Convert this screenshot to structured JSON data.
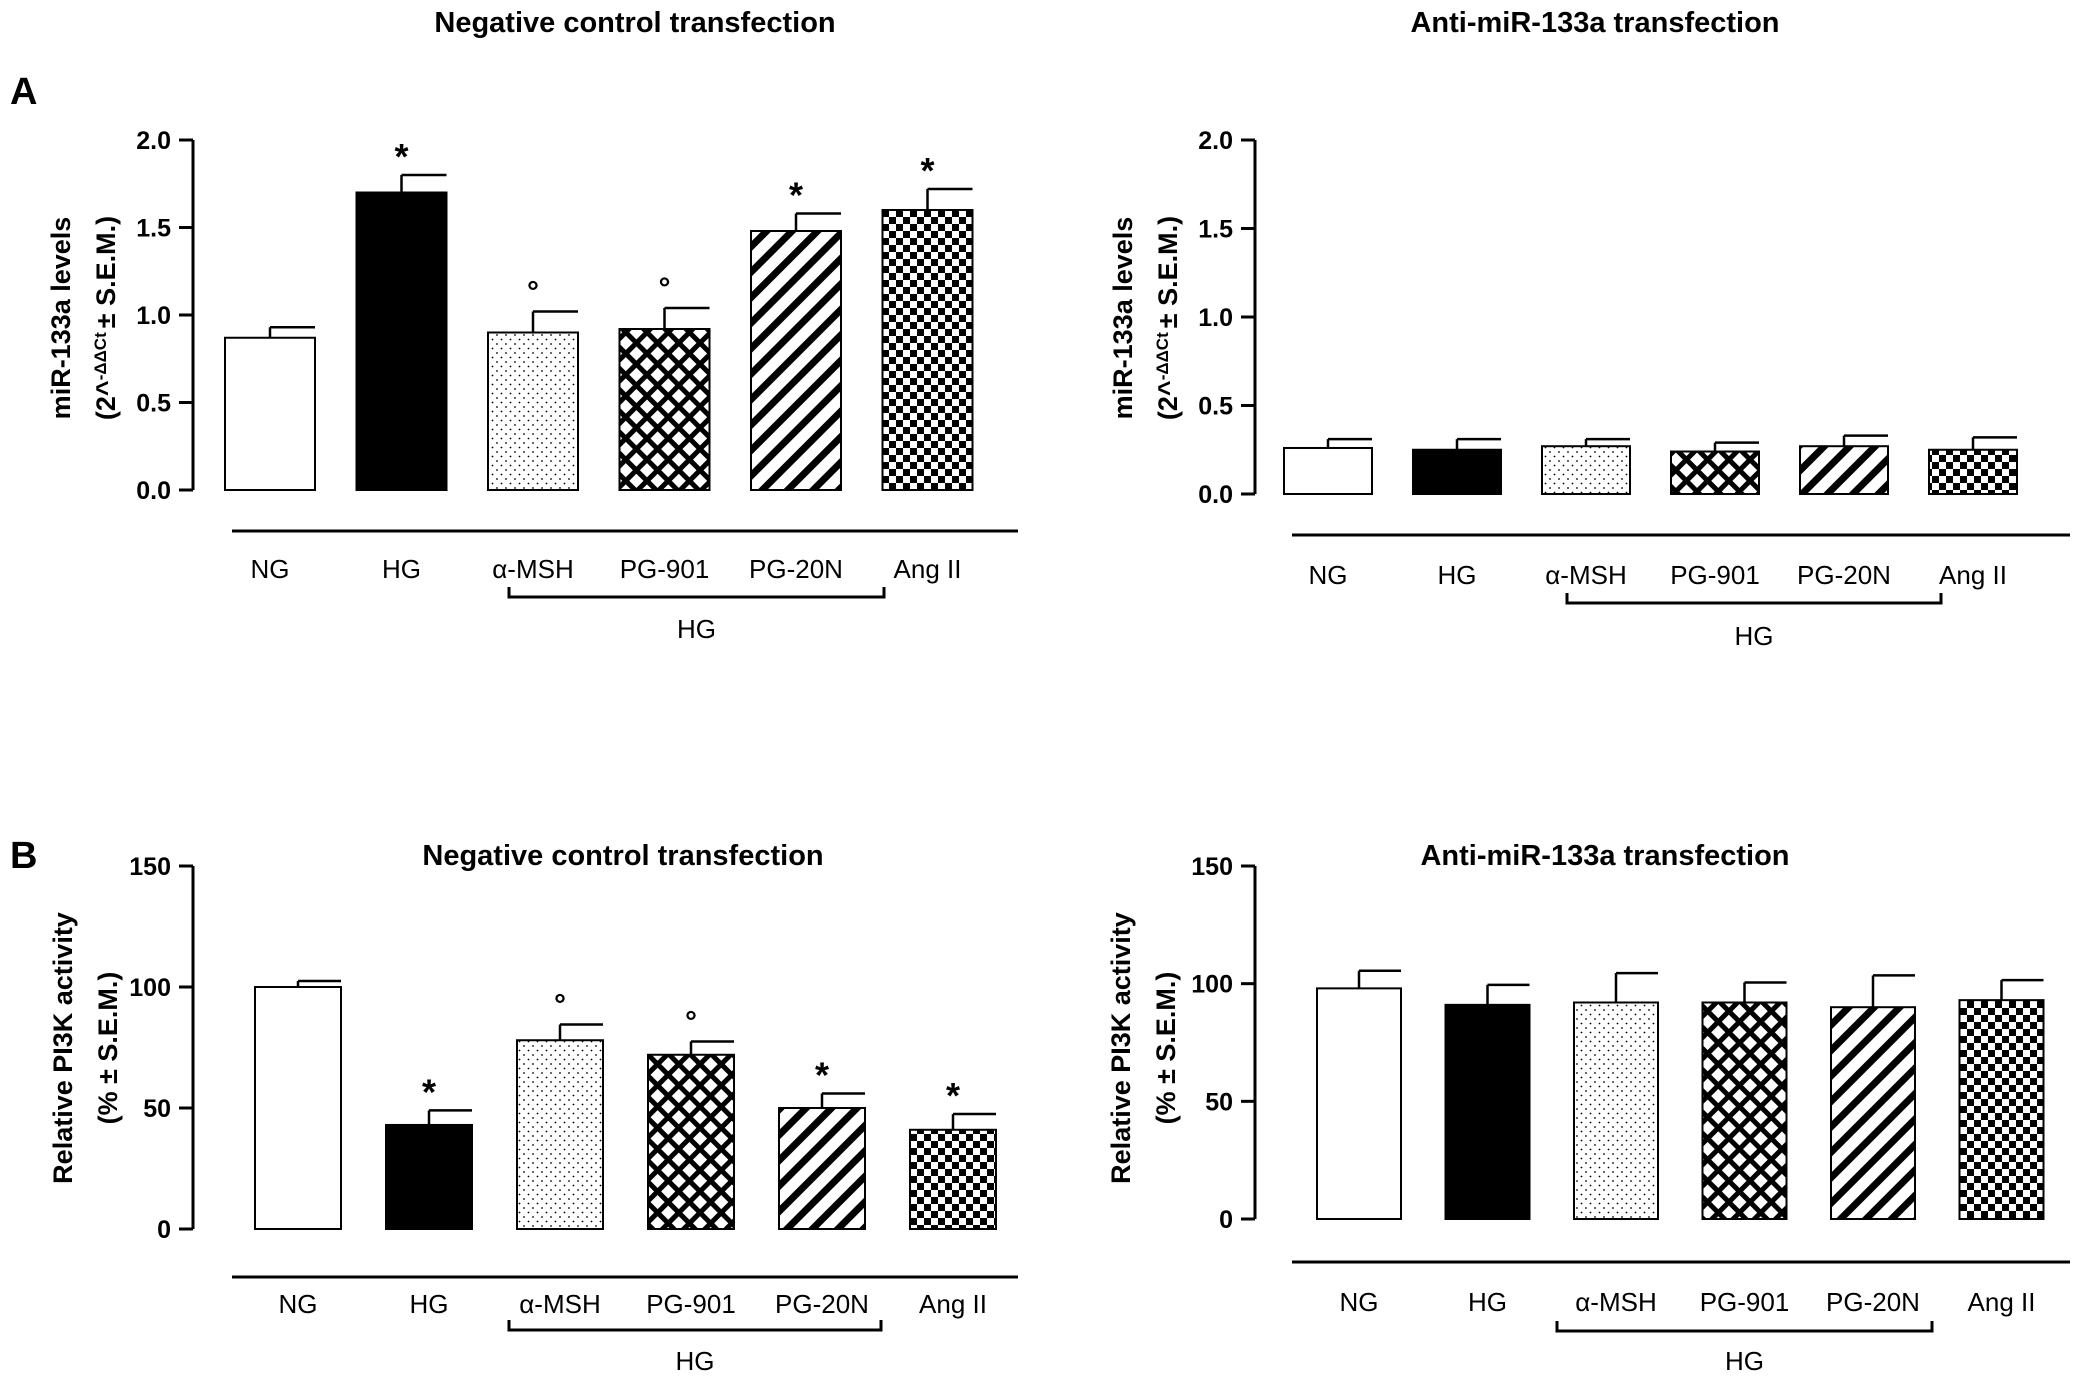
{
  "figure": {
    "top_titles": [
      "Negative control transfection",
      "Anti-miR-133a transfection"
    ],
    "panel_labels": [
      "A",
      "B"
    ]
  },
  "chart_data": [
    {
      "type": "bar",
      "panel": "A",
      "title": "",
      "ylabel_line1": "miR-133a levels",
      "ylabel_line2_prefix": "(2^",
      "ylabel_superscript": "-ΔΔCt",
      "ylabel_line2_suffix": "± S.E.M.)",
      "ylim": [
        0,
        2.0
      ],
      "yticks": [
        0.0,
        0.5,
        1.0,
        1.5,
        2.0
      ],
      "ytick_labels": [
        "0.0",
        "0.5",
        "1.0",
        "1.5",
        "2.0"
      ],
      "categories": [
        "NG",
        "HG",
        "α-MSH",
        "PG-901",
        "PG-20N",
        "Ang II"
      ],
      "patterns": [
        "white",
        "black",
        "dots",
        "crosshatch",
        "diagonal",
        "checker"
      ],
      "values": [
        0.87,
        1.7,
        0.9,
        0.92,
        1.48,
        1.6
      ],
      "errors": [
        0.06,
        0.1,
        0.12,
        0.12,
        0.1,
        0.12
      ],
      "annotations": [
        "",
        "*",
        "°",
        "°",
        "*",
        "*"
      ],
      "group_label": "HG"
    },
    {
      "type": "bar",
      "panel": "A",
      "title": "",
      "ylabel_line1": "miR-133a levels",
      "ylabel_line2_prefix": "(2^",
      "ylabel_superscript": "-ΔΔCt",
      "ylabel_line2_suffix": "± S.E.M.)",
      "ylim": [
        0,
        2.0
      ],
      "yticks": [
        0.0,
        0.5,
        1.0,
        1.5,
        2.0
      ],
      "ytick_labels": [
        "0.0",
        "0.5",
        "1.0",
        "1.5",
        "2.0"
      ],
      "categories": [
        "NG",
        "HG",
        "α-MSH",
        "PG-901",
        "PG-20N",
        "Ang II"
      ],
      "patterns": [
        "white",
        "black",
        "dots",
        "crosshatch",
        "diagonal",
        "checker"
      ],
      "values": [
        0.26,
        0.25,
        0.27,
        0.24,
        0.27,
        0.25
      ],
      "errors": [
        0.05,
        0.06,
        0.04,
        0.05,
        0.06,
        0.07
      ],
      "annotations": [
        "",
        "",
        "",
        "",
        "",
        ""
      ],
      "group_label": "HG"
    },
    {
      "type": "bar",
      "panel": "B",
      "title": "Negative control transfection",
      "ylabel_line1": "Relative PI3K activity",
      "ylabel_line2": "(% ± S.E.M.)",
      "ylim": [
        0,
        150
      ],
      "yticks": [
        0,
        50,
        100,
        150
      ],
      "ytick_labels": [
        "0",
        "50",
        "100",
        "150"
      ],
      "categories": [
        "NG",
        "HG",
        "α-MSH",
        "PG-901",
        "PG-20N",
        "Ang II"
      ],
      "patterns": [
        "white",
        "black",
        "dots",
        "crosshatch",
        "diagonal",
        "checker"
      ],
      "values": [
        100,
        43,
        78,
        72,
        50,
        41
      ],
      "errors": [
        2.5,
        6,
        6.5,
        5.5,
        6,
        6.5
      ],
      "annotations": [
        "",
        "*",
        "°",
        "°",
        "*",
        "*"
      ],
      "group_label": "HG"
    },
    {
      "type": "bar",
      "panel": "B",
      "title": "Anti-miR-133a transfection",
      "ylabel_line1": "Relative PI3K activity",
      "ylabel_line2": "(% ± S.E.M.)",
      "ylim": [
        0,
        150
      ],
      "yticks": [
        0,
        50,
        100,
        150
      ],
      "ytick_labels": [
        "0",
        "50",
        "100",
        "150"
      ],
      "categories": [
        "NG",
        "HG",
        "α-MSH",
        "PG-901",
        "PG-20N",
        "Ang II"
      ],
      "patterns": [
        "white",
        "black",
        "dots",
        "crosshatch",
        "diagonal",
        "checker"
      ],
      "values": [
        98,
        91,
        92,
        92,
        90,
        93
      ],
      "errors": [
        7.5,
        8.5,
        12.5,
        8.5,
        13.5,
        8.5
      ],
      "annotations": [
        "",
        "",
        "",
        "",
        "",
        ""
      ],
      "group_label": "HG"
    }
  ]
}
